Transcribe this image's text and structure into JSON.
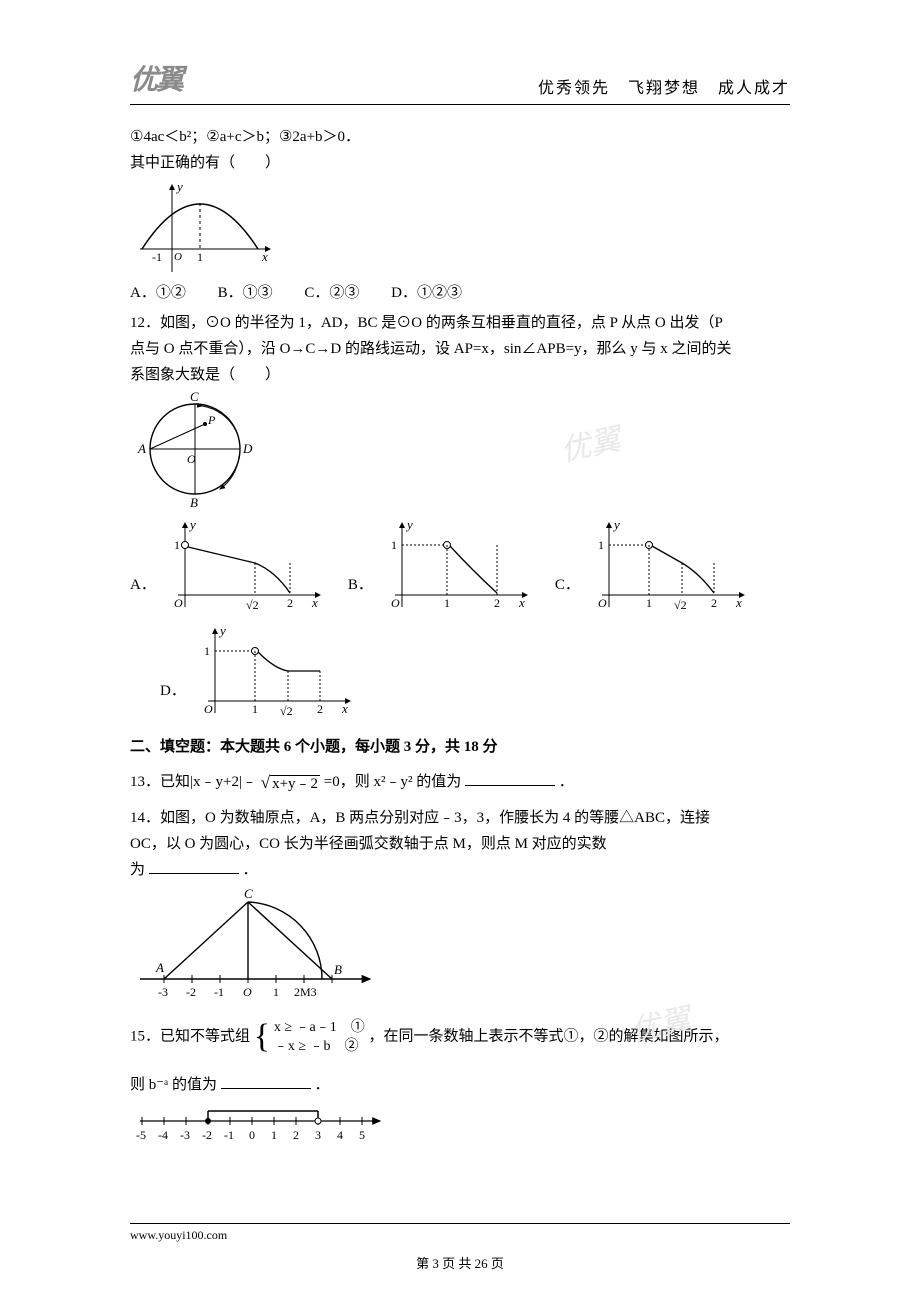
{
  "header": {
    "logo": "优翼",
    "motto": "优秀领先　飞翔梦想　成人成才"
  },
  "q11": {
    "stmt_line": "①4ac＜b²；②a+c＞b；③2a+b＞0．",
    "prompt": "其中正确的有（　　）",
    "parabola": {
      "x_axis_label": "x",
      "y_axis_label": "y",
      "x_ticks": [
        "-1",
        "1"
      ],
      "origin_label": "O",
      "axis_color": "#000000",
      "curve_color": "#000000",
      "dash_x": 1
    },
    "choices": {
      "A": "A．①②",
      "B": "B．①③",
      "C": "C．②③",
      "D": "D．①②③"
    }
  },
  "q12": {
    "text1": "12．如图，⊙O 的半径为 1，AD，BC 是⊙O 的两条互相垂直的直径，点 P 从点 O 出发（P",
    "text2": "点与 O 点不重合），沿 O→C→D 的路线运动，设 AP=x，sin∠APB=y，那么 y 与 x 之间的关",
    "text3": "系图象大致是（　　）",
    "circle_diagram": {
      "labels": {
        "A": "A",
        "B": "B",
        "C": "C",
        "D": "D",
        "O": "O",
        "P": "P"
      },
      "radius": 1,
      "stroke": "#000000"
    },
    "graph_common": {
      "x_label": "x",
      "y_label": "y",
      "y_tick": "1",
      "origin": "O",
      "axis_color": "#000000",
      "curve_color": "#000000"
    },
    "graphA": {
      "x_ticks": [
        "√2",
        "2"
      ]
    },
    "graphB": {
      "x_ticks": [
        "1",
        "2"
      ]
    },
    "graphC": {
      "x_ticks": [
        "1",
        "√2",
        "2"
      ]
    },
    "graphD": {
      "x_ticks": [
        "1",
        "√2",
        "2"
      ]
    },
    "option_labels": {
      "A": "A．",
      "B": "B．",
      "C": "C．",
      "D": "D．"
    }
  },
  "section2": {
    "title": "二、填空题：本大题共 6 个小题，每小题 3 分，共 18 分"
  },
  "q13": {
    "pre": "13．已知|x﹣y+2|﹣",
    "radicand": "x+y﹣2",
    "mid": "=0，则 x²﹣y² 的值为",
    "suffix": "．"
  },
  "q14": {
    "line1": "14．如图，O 为数轴原点，A，B 两点分别对应﹣3，3，作腰长为 4 的等腰△ABC，连接",
    "line2": "OC，以 O 为圆心，CO 长为半径画弧交数轴于点 M，则点 M 对应的实数",
    "line3_pre": "为",
    "line3_suf": "．",
    "diagram": {
      "ticks": [
        "-3",
        "-2",
        "-1",
        "",
        "1",
        "2",
        "3"
      ],
      "tick_positions": [
        -3,
        -2,
        -1,
        0,
        1,
        2,
        3
      ],
      "labels": {
        "A": "A",
        "B": "B",
        "C": "C",
        "O": "O",
        "M": "M"
      },
      "M_tick_label": "2M3",
      "axis_color": "#000000",
      "curve_color": "#000000"
    }
  },
  "q15": {
    "pre": "15．已知不等式组",
    "sys_line1": "x ≥ ﹣a﹣1　①",
    "sys_line2": "﹣x ≥ ﹣b　②",
    "post": "，在同一条数轴上表示不等式①，②的解集如图所示，",
    "line2_pre": "则 b⁻ᵃ 的值为",
    "line2_suf": "．",
    "numberline": {
      "ticks": [
        "-5",
        "-4",
        "-3",
        "-2",
        "-1",
        "0",
        "1",
        "2",
        "3",
        "4",
        "5"
      ],
      "closed_point": -2,
      "open_point": 3,
      "axis_color": "#000000"
    }
  },
  "footer": {
    "url": "www.youyi100.com",
    "page": "第 3 页 共 26 页"
  },
  "watermarks": {
    "w1": "优翼",
    "w2": "优翼"
  }
}
